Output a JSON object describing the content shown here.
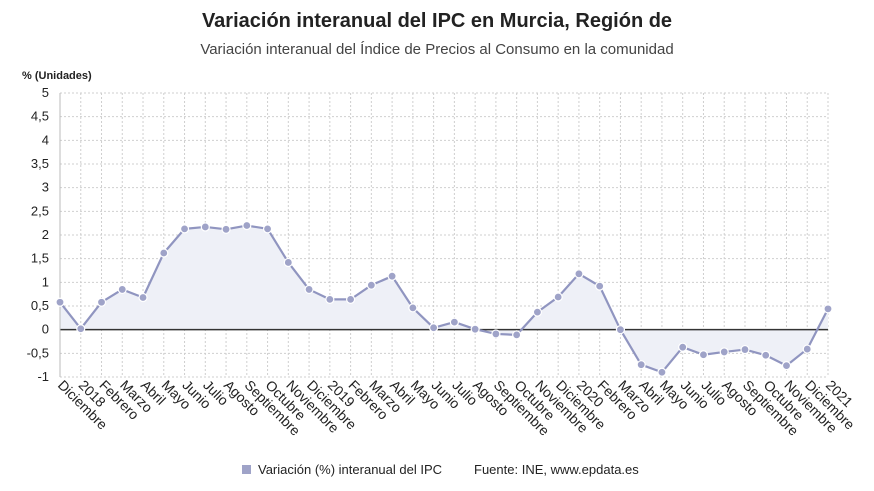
{
  "header": {
    "title": "Variación interanual del IPC en Murcia, Región de",
    "subtitle": "Variación interanual del Índice de Precios al Consumo en la comunidad"
  },
  "footer": {
    "legend_label": "Variación (%) interanual del IPC",
    "source": "Fuente: INE, www.epdata.es"
  },
  "colors": {
    "line": "#9095c0",
    "marker": "#9fa3c8",
    "area": "#eef0f7",
    "grid": "#cfcfcf",
    "zero_line": "#333333"
  },
  "chart_data": {
    "type": "line",
    "title": "Variación interanual del IPC en Murcia, Región de",
    "subtitle": "Variación interanual del Índice de Precios al Consumo en la comunidad",
    "ylabel": "% (Unidades)",
    "xlabel": "",
    "ylim": [
      -1,
      5
    ],
    "yticks": [
      -1,
      -0.5,
      0,
      0.5,
      1,
      1.5,
      2,
      2.5,
      3,
      3.5,
      4,
      4.5,
      5
    ],
    "ytick_labels": [
      "-1",
      "-0,5",
      "0",
      "0,5",
      "1",
      "1,5",
      "2",
      "2,5",
      "3",
      "3,5",
      "4",
      "4,5",
      "5"
    ],
    "grid": true,
    "categories": [
      "Diciembre",
      "2018",
      "Febrero",
      "Marzo",
      "Abril",
      "Mayo",
      "Junio",
      "Julio",
      "Agosto",
      "Septiembre",
      "Octubre",
      "Noviembre",
      "Diciembre",
      "2019",
      "Febrero",
      "Marzo",
      "Abril",
      "Mayo",
      "Junio",
      "Julio",
      "Agosto",
      "Septiembre",
      "Octubre",
      "Noviembre",
      "Diciembre",
      "2020",
      "Febrero",
      "Marzo",
      "Abril",
      "Mayo",
      "Junio",
      "Julio",
      "Agosto",
      "Septiembre",
      "Octubre",
      "Noviembre",
      "Diciembre",
      "2021"
    ],
    "series": [
      {
        "name": "Variación (%) interanual del IPC",
        "values": [
          0.58,
          0.02,
          0.58,
          0.85,
          0.68,
          1.62,
          2.13,
          2.17,
          2.12,
          2.2,
          2.13,
          1.42,
          0.85,
          0.64,
          0.64,
          0.94,
          1.13,
          0.46,
          0.04,
          0.16,
          0.01,
          -0.09,
          -0.11,
          0.37,
          0.69,
          1.18,
          0.92,
          0.0,
          -0.74,
          -0.9,
          -0.37,
          -0.53,
          -0.47,
          -0.42,
          -0.54,
          -0.76,
          -0.41,
          0.44
        ]
      }
    ]
  }
}
